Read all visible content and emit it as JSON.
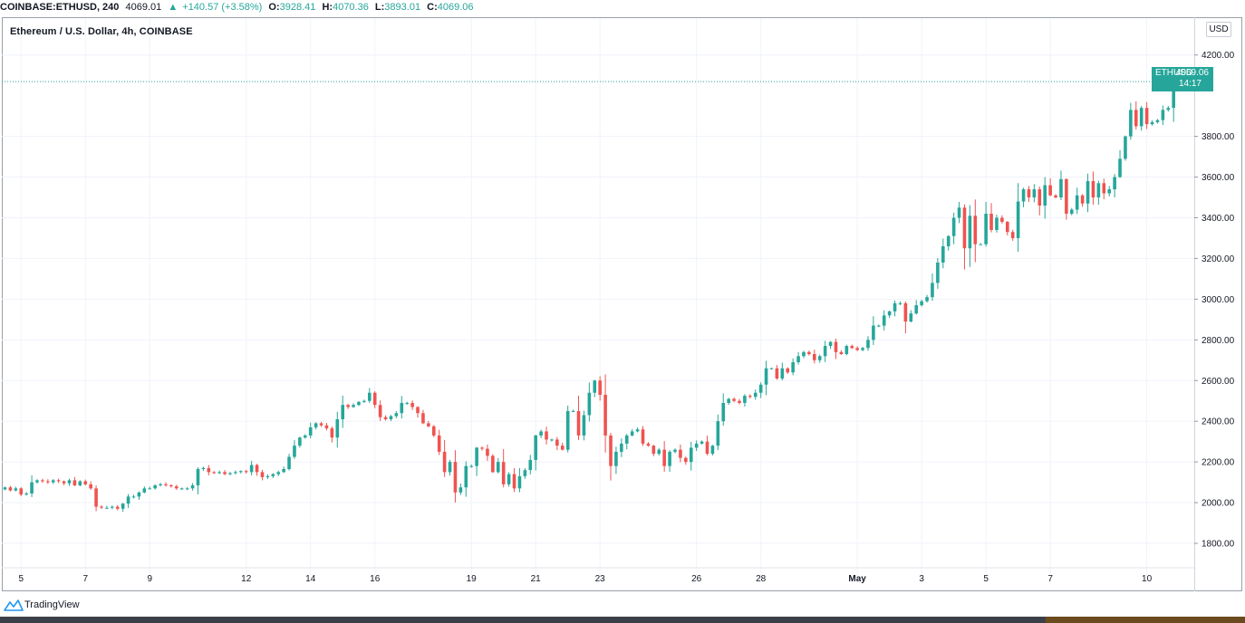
{
  "header": {
    "symbol": "COINBASE:ETHUSD, 240",
    "last": "4069.01",
    "change": "+140.57 (+3.58%)",
    "o_label": "O:",
    "o_value": "3928.41",
    "h_label": "H:",
    "h_value": "4070.36",
    "l_label": "L:",
    "l_value": "3893.01",
    "c_label": "C:",
    "c_value": "4069.06"
  },
  "legend": {
    "title": "Ethereum / U.S. Dollar, 4h, COINBASE"
  },
  "currency_button": "USD",
  "price_tag": {
    "symbol": "ETHUSD",
    "value": "4069.06",
    "countdown": "14:17"
  },
  "footer": {
    "brand": "TradingView"
  },
  "colors": {
    "up": "#26a69a",
    "down": "#ef5350",
    "grid": "#f0f3fa",
    "axis": "#131722"
  },
  "chart_data": {
    "type": "candlestick",
    "y_ticks": [
      "1800.00",
      "2000.00",
      "2200.00",
      "2400.00",
      "2600.00",
      "2800.00",
      "3000.00",
      "3200.00",
      "3400.00",
      "3600.00",
      "3800.00",
      "4200.00"
    ],
    "y_tick_values": [
      1800,
      2000,
      2200,
      2400,
      2600,
      2800,
      3000,
      3200,
      3400,
      3600,
      3800,
      4200
    ],
    "ylim": [
      1720,
      4270
    ],
    "x_ticks": [
      {
        "label": "5",
        "i": 3
      },
      {
        "label": "7",
        "i": 15
      },
      {
        "label": "9",
        "i": 27
      },
      {
        "label": "12",
        "i": 45
      },
      {
        "label": "14",
        "i": 57
      },
      {
        "label": "16",
        "i": 69
      },
      {
        "label": "19",
        "i": 87
      },
      {
        "label": "21",
        "i": 99
      },
      {
        "label": "23",
        "i": 111
      },
      {
        "label": "26",
        "i": 129
      },
      {
        "label": "28",
        "i": 141
      },
      {
        "label": "May",
        "i": 159,
        "bold": true
      },
      {
        "label": "3",
        "i": 171
      },
      {
        "label": "5",
        "i": 183
      },
      {
        "label": "7",
        "i": 195
      },
      {
        "label": "10",
        "i": 213
      }
    ],
    "last_price": 4069.06,
    "closes": [
      2075,
      2060,
      2070,
      2040,
      2045,
      2100,
      2110,
      2105,
      2100,
      2110,
      2105,
      2095,
      2110,
      2085,
      2105,
      2090,
      2070,
      1980,
      1975,
      1975,
      1980,
      1970,
      1995,
      2030,
      2030,
      2050,
      2070,
      2070,
      2085,
      2090,
      2085,
      2080,
      2070,
      2070,
      2070,
      2085,
      2165,
      2170,
      2150,
      2145,
      2150,
      2140,
      2145,
      2150,
      2155,
      2150,
      2185,
      2150,
      2125,
      2130,
      2140,
      2150,
      2165,
      2225,
      2280,
      2320,
      2330,
      2370,
      2390,
      2380,
      2365,
      2320,
      2410,
      2480,
      2470,
      2480,
      2495,
      2500,
      2540,
      2480,
      2420,
      2410,
      2425,
      2440,
      2490,
      2490,
      2470,
      2440,
      2390,
      2375,
      2330,
      2250,
      2150,
      2200,
      2050,
      2075,
      2180,
      2180,
      2270,
      2265,
      2230,
      2150,
      2200,
      2090,
      2140,
      2070,
      2130,
      2160,
      2210,
      2330,
      2350,
      2310,
      2310,
      2280,
      2260,
      2450,
      2450,
      2330,
      2430,
      2540,
      2600,
      2530,
      2330,
      2180,
      2250,
      2290,
      2330,
      2350,
      2360,
      2290,
      2280,
      2240,
      2260,
      2180,
      2250,
      2260,
      2220,
      2200,
      2270,
      2290,
      2300,
      2240,
      2280,
      2400,
      2490,
      2510,
      2500,
      2490,
      2525,
      2520,
      2540,
      2580,
      2660,
      2660,
      2610,
      2660,
      2640,
      2690,
      2720,
      2740,
      2730,
      2700,
      2720,
      2770,
      2790,
      2740,
      2730,
      2770,
      2760,
      2750,
      2760,
      2800,
      2870,
      2870,
      2920,
      2940,
      2980,
      2980,
      2890,
      2930,
      2970,
      2990,
      3010,
      3080,
      3180,
      3260,
      3310,
      3400,
      3450,
      3250,
      3410,
      3270,
      3270,
      3420,
      3340,
      3400,
      3380,
      3330,
      3300,
      3480,
      3540,
      3500,
      3540,
      3460,
      3560,
      3510,
      3500,
      3590,
      3420,
      3440,
      3510,
      3470,
      3580,
      3500,
      3570,
      3520,
      3540,
      3600,
      3690,
      3800,
      3930,
      3850,
      3940,
      3860,
      3870,
      3880,
      3930,
      3940,
      4069
    ]
  }
}
